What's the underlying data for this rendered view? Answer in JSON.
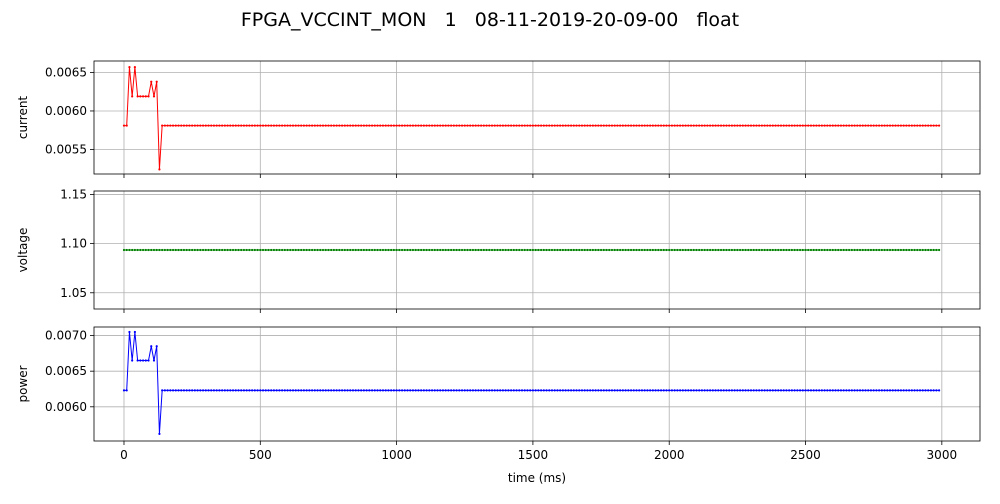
{
  "figure": {
    "title": "FPGA_VCCINT_MON   1   08-11-2019-20-09-00   float"
  },
  "chart_data": [
    {
      "type": "line",
      "ylabel": "current",
      "xlabel": "",
      "color": "#ff0000",
      "xlim": [
        -110,
        3140
      ],
      "ylim": [
        0.00518,
        0.00665
      ],
      "xticks": [
        0,
        500,
        1000,
        1500,
        2000,
        2500,
        3000
      ],
      "xticklabels": [],
      "yticks": [
        0.0055,
        0.006,
        0.0065
      ],
      "yticklabels": [
        "0.0055",
        "0.0060",
        "0.0065"
      ],
      "grid": true,
      "x_range": [
        0,
        2990
      ],
      "x_step": 10,
      "y_default": 0.00581,
      "y_overrides": {
        "0": 0.00581,
        "10": 0.00581,
        "20": 0.00657,
        "30": 0.00619,
        "40": 0.00657,
        "50": 0.00619,
        "60": 0.00619,
        "70": 0.00619,
        "80": 0.00619,
        "90": 0.00619,
        "100": 0.00638,
        "110": 0.00619,
        "120": 0.00638,
        "130": 0.00524
      }
    },
    {
      "type": "line",
      "ylabel": "voltage",
      "xlabel": "",
      "color": "#008000",
      "xlim": [
        -110,
        3140
      ],
      "ylim": [
        1.0335,
        1.1535
      ],
      "xticks": [
        0,
        500,
        1000,
        1500,
        2000,
        2500,
        3000
      ],
      "xticklabels": [],
      "yticks": [
        1.05,
        1.1,
        1.15
      ],
      "yticklabels": [
        "1.05",
        "1.10",
        "1.15"
      ],
      "grid": true,
      "x_range": [
        0,
        2990
      ],
      "x_step": 10,
      "y_default": 1.0935,
      "y_overrides": {}
    },
    {
      "type": "line",
      "ylabel": "power",
      "xlabel": "time (ms)",
      "color": "#0000ff",
      "xlim": [
        -110,
        3140
      ],
      "ylim": [
        0.00552,
        0.00712
      ],
      "xticks": [
        0,
        500,
        1000,
        1500,
        2000,
        2500,
        3000
      ],
      "xticklabels": [
        "0",
        "500",
        "1000",
        "1500",
        "2000",
        "2500",
        "3000"
      ],
      "yticks": [
        0.006,
        0.0065,
        0.007
      ],
      "yticklabels": [
        "0.0060",
        "0.0065",
        "0.0070"
      ],
      "grid": true,
      "x_range": [
        0,
        2990
      ],
      "x_step": 10,
      "y_default": 0.00623,
      "y_overrides": {
        "0": 0.00623,
        "10": 0.00623,
        "20": 0.00705,
        "30": 0.00665,
        "40": 0.00705,
        "50": 0.00665,
        "60": 0.00665,
        "70": 0.00665,
        "80": 0.00665,
        "90": 0.00665,
        "100": 0.00685,
        "110": 0.00665,
        "120": 0.00685,
        "130": 0.00562
      }
    }
  ]
}
